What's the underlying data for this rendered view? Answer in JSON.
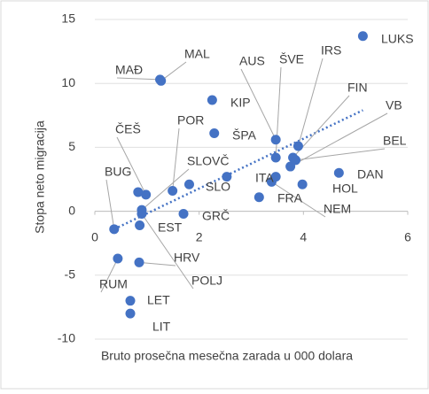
{
  "chart_data": {
    "type": "scatter",
    "x_label": "Bruto prosečna mesečna zarada u 000 dolara",
    "y_label": "Stopa neto migracija",
    "color": "#4472c4",
    "labels": [
      "LUKS",
      "MAL",
      "MAĐ",
      "KIP",
      "ŠPA",
      "AUS",
      "ŠVE",
      "IRS",
      "FIN",
      "VB",
      "BEL",
      "DAN",
      "HOL",
      "NEM",
      "FRA",
      "ITA",
      "ČEŠ",
      "POR",
      "SLOVČ",
      "SLO",
      "BUG",
      "GRČ",
      "EST",
      "HRV",
      "POLJ",
      "RUM",
      "LET",
      "LIT",
      null,
      null
    ],
    "x": [
      5.14,
      1.27,
      1.25,
      2.25,
      2.29,
      3.47,
      3.47,
      3.9,
      3.8,
      3.75,
      3.85,
      4.68,
      3.98,
      3.39,
      3.47,
      3.15,
      0.98,
      1.49,
      0.9,
      1.81,
      0.37,
      1.7,
      0.86,
      0.85,
      0.9,
      0.44,
      0.68,
      0.68,
      2.53,
      0.83
    ],
    "values": [
      13.7,
      10.2,
      10.3,
      8.7,
      6.1,
      5.6,
      4.2,
      5.1,
      4.2,
      3.5,
      4.0,
      3.0,
      2.1,
      2.3,
      2.7,
      1.1,
      1.3,
      1.6,
      0.1,
      2.1,
      -1.4,
      -0.2,
      -1.1,
      -4.0,
      -0.2,
      -3.7,
      -7.0,
      -8.0,
      2.7,
      1.5
    ],
    "trendline": {
      "x": [
        0.37,
        5.14
      ],
      "y": [
        -1.4,
        7.9
      ],
      "color": "#4472c4"
    },
    "xlim": [
      0,
      6
    ],
    "xticks": [
      0,
      2,
      4,
      6
    ],
    "ylim": [
      -10,
      15
    ],
    "yticks": [
      -10,
      -5,
      0,
      5,
      10,
      15
    ],
    "grid": true
  }
}
